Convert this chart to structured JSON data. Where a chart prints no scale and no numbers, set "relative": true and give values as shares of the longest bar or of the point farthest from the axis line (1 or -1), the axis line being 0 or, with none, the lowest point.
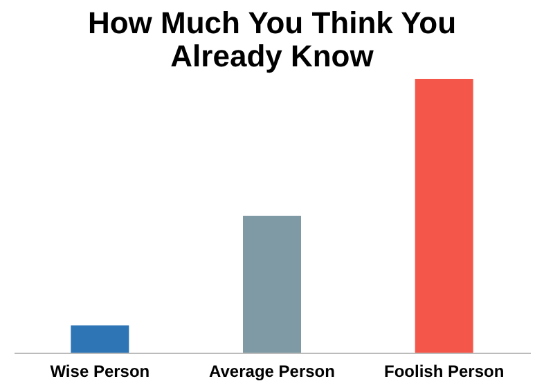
{
  "chart_data": {
    "type": "bar",
    "title": "How Much You Think You\nAlready Know",
    "categories": [
      "Wise Person",
      "Average Person",
      "Foolish Person"
    ],
    "values": [
      0.1,
      0.5,
      1
    ],
    "colors": [
      "#2e75b6",
      "#7f9aa5",
      "#f4574a"
    ],
    "relative": true,
    "grid": false
  }
}
